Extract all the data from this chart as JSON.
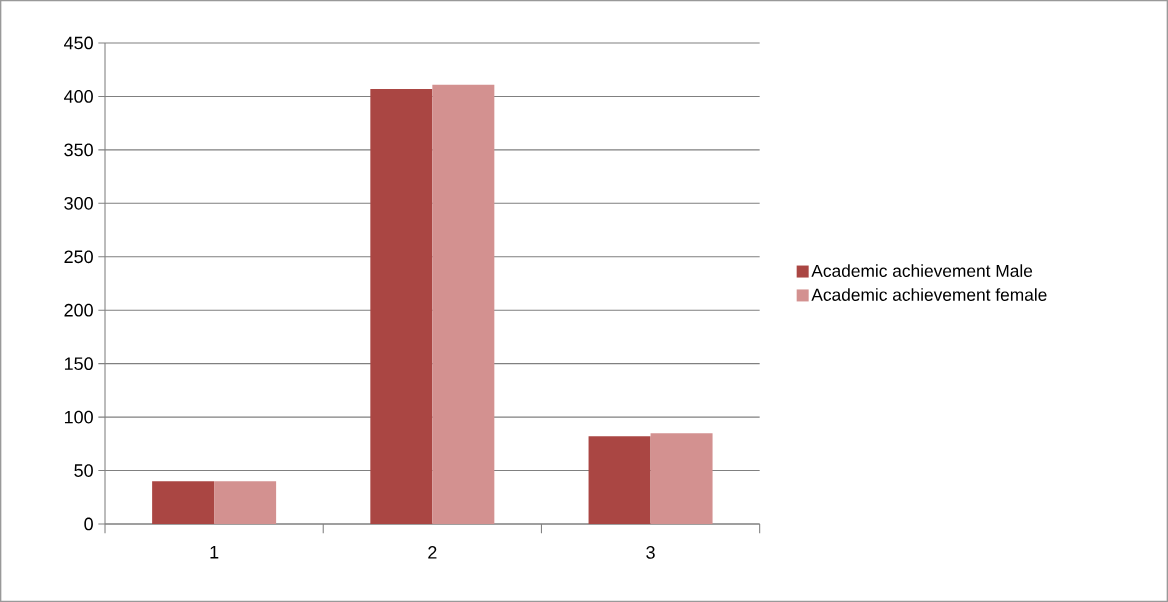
{
  "chart_data": {
    "type": "bar",
    "categories": [
      "1",
      "2",
      "3"
    ],
    "series": [
      {
        "name": "Academic achievement Male",
        "color": "#aa4643",
        "values": [
          40,
          407,
          82
        ]
      },
      {
        "name": "Academic achievement female",
        "color": "#d39190",
        "values": [
          40,
          411,
          85
        ]
      }
    ],
    "ylim": [
      0,
      450
    ],
    "yticks": [
      0,
      50,
      100,
      150,
      200,
      250,
      300,
      350,
      400,
      450
    ],
    "grid": "y",
    "legend": "right"
  }
}
